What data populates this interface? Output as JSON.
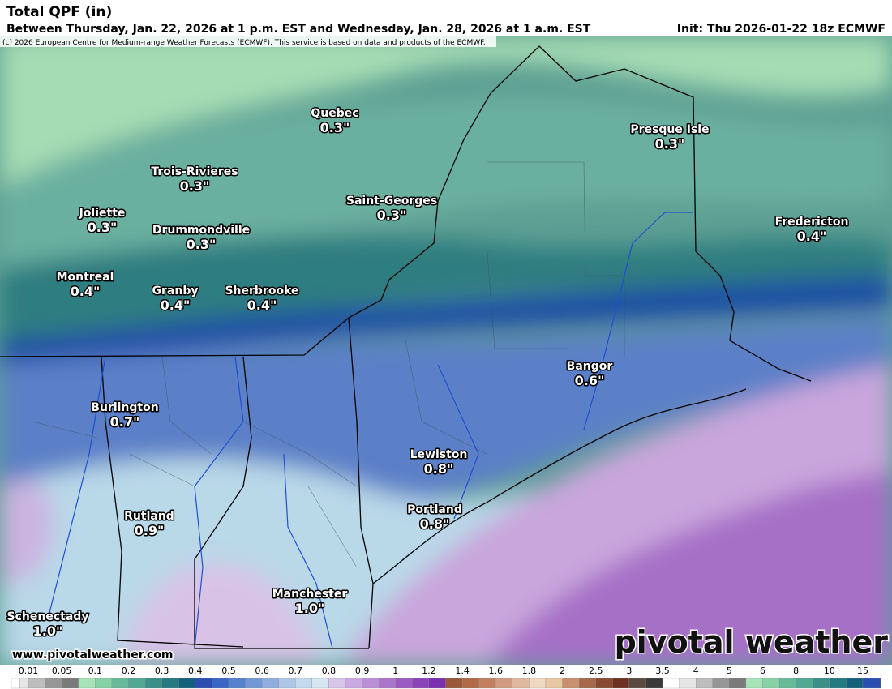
{
  "header": {
    "title": "Total QPF (in)",
    "subtitle": "Between Thursday, Jan. 22, 2026 at 1 p.m. EST and Wednesday, Jan. 28, 2026 at 1 a.m. EST",
    "init": "Init: Thu 2026-01-22 18z ECMWF",
    "copyright": "(c) 2026 European Centre for Medium-range Weather Forecasts (ECMWF). This service is based on data and products of the ECMWF."
  },
  "cities": [
    {
      "name": "Quebec",
      "value": "0.3\""
    },
    {
      "name": "Trois-Rivieres",
      "value": "0.3\""
    },
    {
      "name": "Joliette",
      "value": "0.3\""
    },
    {
      "name": "Drummondville",
      "value": "0.3\""
    },
    {
      "name": "Saint-Georges",
      "value": "0.3\""
    },
    {
      "name": "Presque Isle",
      "value": "0.3\""
    },
    {
      "name": "Fredericton",
      "value": "0.4\""
    },
    {
      "name": "Montreal",
      "value": "0.4\""
    },
    {
      "name": "Granby",
      "value": "0.4\""
    },
    {
      "name": "Sherbrooke",
      "value": "0.4\""
    },
    {
      "name": "Bangor",
      "value": "0.6\""
    },
    {
      "name": "Burlington",
      "value": "0.7\""
    },
    {
      "name": "Lewiston",
      "value": "0.8\""
    },
    {
      "name": "Portland",
      "value": "0.8\""
    },
    {
      "name": "Rutland",
      "value": "0.9\""
    },
    {
      "name": "Manchester",
      "value": "1.0\""
    },
    {
      "name": "Schenectady",
      "value": "1.0\""
    }
  ],
  "footer": {
    "website": "www.pivotalweather.com",
    "logo": "pivotal weather"
  },
  "colorbar": {
    "labels": [
      "0.01",
      "0.05",
      "0.1",
      "0.2",
      "0.3",
      "0.4",
      "0.5",
      "0.6",
      "0.7",
      "0.8",
      "0.9",
      "1",
      "1.2",
      "1.4",
      "1.6",
      "1.8",
      "2",
      "2.5",
      "3",
      "3.5",
      "4",
      "5",
      "6",
      "8",
      "10",
      "15"
    ]
  }
}
